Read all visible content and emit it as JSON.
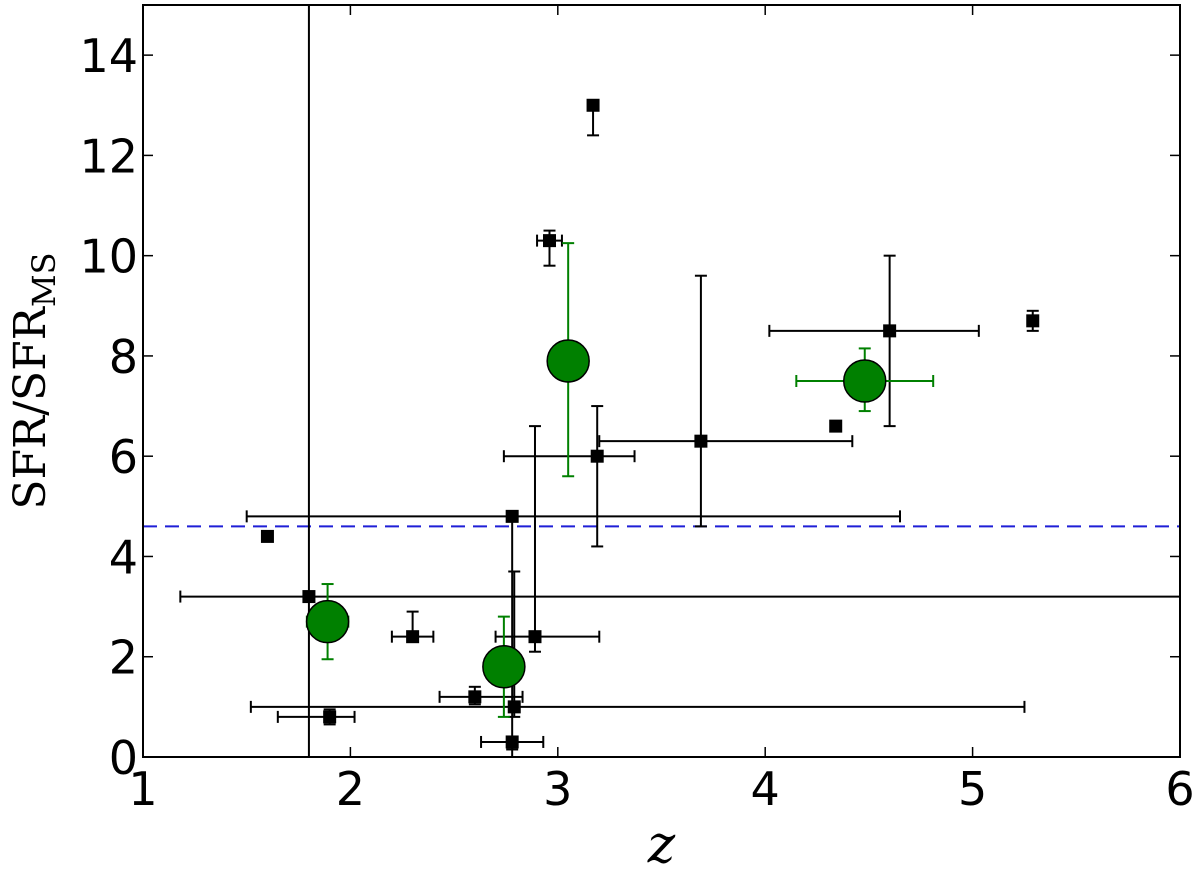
{
  "chart_data": {
    "type": "scatter",
    "title": "",
    "xlabel": "z",
    "ylabel": "SFR/SFR",
    "ylabel_subscript": "MS",
    "xlim": [
      1,
      6
    ],
    "ylim": [
      0,
      15
    ],
    "xticks": [
      1,
      2,
      3,
      4,
      5,
      6
    ],
    "yticks": [
      0,
      2,
      4,
      6,
      8,
      10,
      12,
      14
    ],
    "grid": false,
    "reference_line": {
      "y": 4.6,
      "color": "#1f1fd6",
      "style": "dashed"
    },
    "series": [
      {
        "marker": "square",
        "color": "#000000",
        "points": [
          {
            "x": 1.6,
            "y": 4.4
          },
          {
            "x": 1.8,
            "y": 3.2,
            "xerr": [
              0.62,
              4.2
            ],
            "yerr": [
              3.2,
              11.8
            ]
          },
          {
            "x": 1.9,
            "y": 0.8,
            "xerr": [
              0.25,
              0.12
            ],
            "yerr": [
              0.15,
              0.15
            ]
          },
          {
            "x": 2.3,
            "y": 2.4,
            "xerr": [
              0.1,
              0.1
            ],
            "yerr": [
              0,
              0.5
            ]
          },
          {
            "x": 2.6,
            "y": 1.2,
            "xerr": [
              0.17,
              0.23
            ],
            "yerr": [
              0.15,
              0.2
            ]
          },
          {
            "x": 2.78,
            "y": 4.8,
            "xerr": [
              1.28,
              1.87
            ],
            "yerr": [
              4.8,
              0
            ]
          },
          {
            "x": 2.78,
            "y": 0.3,
            "xerr": [
              0.15,
              0.15
            ],
            "yerr": [
              0.15,
              0.1
            ]
          },
          {
            "x": 2.79,
            "y": 1.0,
            "xerr": [
              1.27,
              2.46
            ],
            "yerr": [
              0.2,
              2.7
            ]
          },
          {
            "x": 2.89,
            "y": 2.4,
            "xerr": [
              0.19,
              0.31
            ],
            "yerr": [
              0.3,
              4.2
            ]
          },
          {
            "x": 2.96,
            "y": 10.3,
            "xerr": [
              0.06,
              0.06
            ],
            "yerr": [
              0.5,
              0.2
            ]
          },
          {
            "x": 3.17,
            "y": 13.0,
            "yerr": [
              0.6,
              0
            ]
          },
          {
            "x": 3.19,
            "y": 6.0,
            "xerr": [
              0.45,
              0.18
            ],
            "yerr": [
              1.8,
              1.0
            ]
          },
          {
            "x": 3.69,
            "y": 6.3,
            "xerr": [
              0.49,
              0.73
            ],
            "yerr": [
              1.7,
              3.3
            ]
          },
          {
            "x": 4.34,
            "y": 6.6,
            "yerr": [
              0,
              0.1
            ]
          },
          {
            "x": 4.6,
            "y": 8.5,
            "xerr": [
              0.58,
              0.43
            ],
            "yerr": [
              1.9,
              1.5
            ]
          },
          {
            "x": 5.29,
            "y": 8.7,
            "yerr": [
              0.2,
              0.2
            ]
          }
        ]
      },
      {
        "marker": "circle",
        "color": "#008000",
        "points": [
          {
            "x": 1.89,
            "y": 2.7,
            "xerr": [
              0.1,
              0.1
            ],
            "yerr": [
              0.75,
              0.75
            ]
          },
          {
            "x": 2.74,
            "y": 1.8,
            "xerr": [
              0,
              0
            ],
            "yerr": [
              1.0,
              1.0
            ]
          },
          {
            "x": 3.05,
            "y": 7.9,
            "xerr": [
              0,
              0
            ],
            "yerr": [
              2.3,
              2.35
            ]
          },
          {
            "x": 4.48,
            "y": 7.5,
            "xerr": [
              0.33,
              0.33
            ],
            "yerr": [
              0.6,
              0.65
            ]
          }
        ]
      }
    ]
  }
}
